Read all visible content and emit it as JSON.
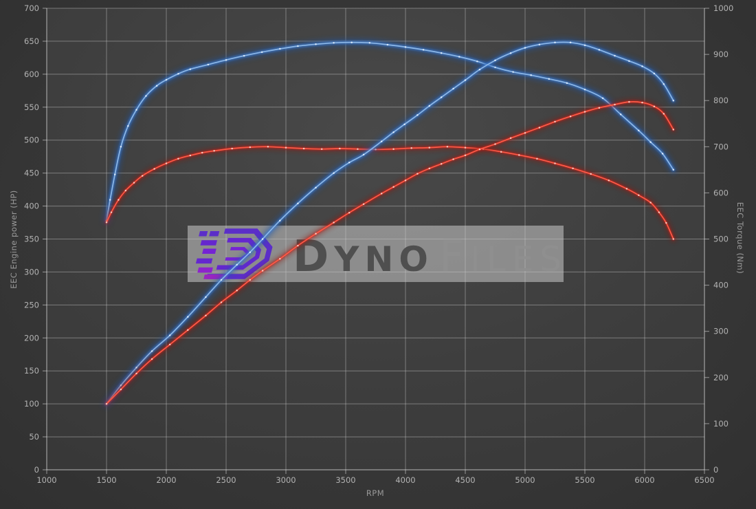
{
  "watermark": {
    "bold": "DYNO",
    "light": "FILES"
  },
  "chart_data": {
    "type": "line",
    "title": "",
    "xlabel": "RPM",
    "ylabel_left": "EEC Engine power (HP)",
    "ylabel_right": "EEC Torque (Nm)",
    "x_range": [
      1000,
      6500
    ],
    "x_tick_step": 500,
    "y_left_range": [
      0,
      700
    ],
    "y_left_tick_step": 50,
    "y_right_range": [
      0,
      1000
    ],
    "y_right_tick_step": 100,
    "grid": true,
    "legend_position": "none",
    "series": [
      {
        "name": "torque-curve-blue",
        "axis": "right",
        "unit": "Nm",
        "color_key": "blue",
        "points": [
          [
            1500,
            540
          ],
          [
            1530,
            585
          ],
          [
            1570,
            640
          ],
          [
            1620,
            700
          ],
          [
            1680,
            745
          ],
          [
            1750,
            780
          ],
          [
            1830,
            810
          ],
          [
            1920,
            832
          ],
          [
            2000,
            845
          ],
          [
            2100,
            858
          ],
          [
            2200,
            868
          ],
          [
            2350,
            878
          ],
          [
            2500,
            888
          ],
          [
            2650,
            897
          ],
          [
            2800,
            905
          ],
          [
            2950,
            912
          ],
          [
            3100,
            918
          ],
          [
            3250,
            922
          ],
          [
            3400,
            925
          ],
          [
            3550,
            926
          ],
          [
            3700,
            925
          ],
          [
            3850,
            921
          ],
          [
            4000,
            916
          ],
          [
            4150,
            910
          ],
          [
            4300,
            903
          ],
          [
            4450,
            895
          ],
          [
            4600,
            885
          ],
          [
            4750,
            872
          ],
          [
            4900,
            862
          ],
          [
            5050,
            855
          ],
          [
            5200,
            847
          ],
          [
            5350,
            838
          ],
          [
            5500,
            824
          ],
          [
            5650,
            805
          ],
          [
            5800,
            770
          ],
          [
            5950,
            735
          ],
          [
            6050,
            710
          ],
          [
            6150,
            685
          ],
          [
            6240,
            650
          ]
        ]
      },
      {
        "name": "torque-curve-red",
        "axis": "right",
        "unit": "Nm",
        "color_key": "red",
        "points": [
          [
            1500,
            536
          ],
          [
            1540,
            558
          ],
          [
            1600,
            585
          ],
          [
            1660,
            605
          ],
          [
            1730,
            622
          ],
          [
            1800,
            637
          ],
          [
            1900,
            652
          ],
          [
            2000,
            664
          ],
          [
            2100,
            674
          ],
          [
            2200,
            681
          ],
          [
            2300,
            687
          ],
          [
            2400,
            691
          ],
          [
            2550,
            696
          ],
          [
            2700,
            699
          ],
          [
            2850,
            700
          ],
          [
            3000,
            698
          ],
          [
            3150,
            696
          ],
          [
            3300,
            695
          ],
          [
            3450,
            696
          ],
          [
            3600,
            695
          ],
          [
            3750,
            694
          ],
          [
            3900,
            695
          ],
          [
            4050,
            697
          ],
          [
            4200,
            698
          ],
          [
            4350,
            700
          ],
          [
            4500,
            698
          ],
          [
            4650,
            695
          ],
          [
            4800,
            689
          ],
          [
            4950,
            682
          ],
          [
            5100,
            674
          ],
          [
            5250,
            664
          ],
          [
            5400,
            653
          ],
          [
            5550,
            641
          ],
          [
            5700,
            627
          ],
          [
            5850,
            609
          ],
          [
            5950,
            595
          ],
          [
            6050,
            579
          ],
          [
            6120,
            558
          ],
          [
            6180,
            535
          ],
          [
            6240,
            500
          ]
        ]
      },
      {
        "name": "power-curve-blue",
        "axis": "left",
        "unit": "HP",
        "color_key": "blue",
        "points": [
          [
            1500,
            100
          ],
          [
            1620,
            128
          ],
          [
            1750,
            155
          ],
          [
            1880,
            180
          ],
          [
            2030,
            204
          ],
          [
            2180,
            232
          ],
          [
            2330,
            262
          ],
          [
            2460,
            288
          ],
          [
            2590,
            311
          ],
          [
            2700,
            330
          ],
          [
            2805,
            350
          ],
          [
            2950,
            378
          ],
          [
            3100,
            404
          ],
          [
            3250,
            428
          ],
          [
            3400,
            450
          ],
          [
            3530,
            466
          ],
          [
            3650,
            478
          ],
          [
            3800,
            498
          ],
          [
            3900,
            512
          ],
          [
            3992,
            524
          ],
          [
            4100,
            538
          ],
          [
            4200,
            552
          ],
          [
            4300,
            565
          ],
          [
            4400,
            578
          ],
          [
            4500,
            591
          ],
          [
            4620,
            607
          ],
          [
            4750,
            621
          ],
          [
            4880,
            632
          ],
          [
            5000,
            640
          ],
          [
            5120,
            645
          ],
          [
            5250,
            648
          ],
          [
            5380,
            648
          ],
          [
            5500,
            644
          ],
          [
            5620,
            637
          ],
          [
            5750,
            628
          ],
          [
            5870,
            620
          ],
          [
            5980,
            612
          ],
          [
            6080,
            601
          ],
          [
            6160,
            585
          ],
          [
            6240,
            560
          ]
        ]
      },
      {
        "name": "power-curve-red",
        "axis": "left",
        "unit": "HP",
        "color_key": "red",
        "points": [
          [
            1500,
            100
          ],
          [
            1620,
            122
          ],
          [
            1750,
            146
          ],
          [
            1880,
            168
          ],
          [
            2030,
            190
          ],
          [
            2180,
            212
          ],
          [
            2330,
            234
          ],
          [
            2460,
            254
          ],
          [
            2590,
            272
          ],
          [
            2700,
            288
          ],
          [
            2805,
            302
          ],
          [
            2950,
            320
          ],
          [
            3100,
            340
          ],
          [
            3250,
            358
          ],
          [
            3400,
            375
          ],
          [
            3530,
            390
          ],
          [
            3650,
            403
          ],
          [
            3800,
            419
          ],
          [
            3900,
            429
          ],
          [
            4000,
            439
          ],
          [
            4100,
            449
          ],
          [
            4200,
            457
          ],
          [
            4300,
            464
          ],
          [
            4400,
            471
          ],
          [
            4500,
            477
          ],
          [
            4620,
            486
          ],
          [
            4750,
            494
          ],
          [
            4880,
            503
          ],
          [
            5000,
            511
          ],
          [
            5120,
            519
          ],
          [
            5250,
            528
          ],
          [
            5380,
            536
          ],
          [
            5500,
            543
          ],
          [
            5620,
            549
          ],
          [
            5750,
            554
          ],
          [
            5870,
            558
          ],
          [
            5980,
            557
          ],
          [
            6080,
            551
          ],
          [
            6160,
            540
          ],
          [
            6240,
            516
          ]
        ]
      }
    ]
  },
  "colors": {
    "background": "#353535",
    "plot_center": "#494949",
    "plot_edge": "#383838",
    "grid_line": "rgba(220,220,220,0.40)",
    "axis_line": "rgba(235,235,235,0.55)",
    "tick_text": "#b3b3b3",
    "axis_title_text": "#999999",
    "watermark_band": "rgba(202,202,202,0.55)",
    "logo_purple": "#5b2ec8",
    "watermark_bold_text": "#4f4f4f",
    "watermark_light_text": "#8f8f8f",
    "blue": {
      "glow": "#1f55a8",
      "mid": "#3a7ad0",
      "core": "#8db8e8",
      "dot": "#e8f3ff"
    },
    "red": {
      "glow": "#8c1410",
      "mid": "#d02218",
      "core": "#ff5a48",
      "dot": "#ffd8cf"
    }
  }
}
